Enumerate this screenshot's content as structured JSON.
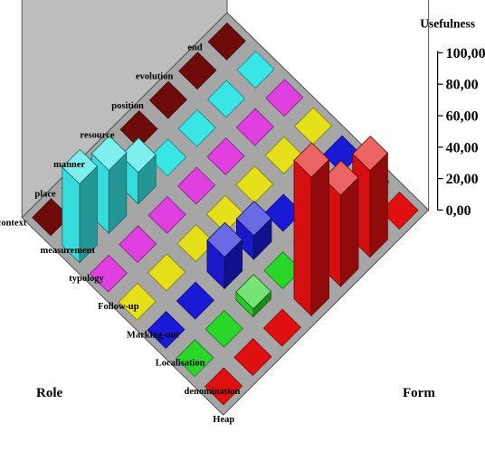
{
  "chart_data": {
    "type": "bar3d",
    "title": "",
    "zlabel": "Usefulness",
    "xlabel": "Role",
    "ylabel": "Form",
    "zlim": [
      0,
      100
    ],
    "zticks": [
      "0,00",
      "20,00",
      "40,00",
      "60,00",
      "80,00",
      "100,00"
    ],
    "grid": false,
    "legend": "none",
    "roles": [
      "end",
      "evolution",
      "position",
      "resource",
      "manner",
      "place",
      "context"
    ],
    "forms": [
      "measurement",
      "typology",
      "Follow-up",
      "Marking-out",
      "Localisation",
      "denomination",
      "Heap"
    ],
    "form_colors": [
      "#6e0a0a",
      "#39e6e6",
      "#e040e0",
      "#e6e01a",
      "#1a1ad6",
      "#2ad62a",
      "#e01010"
    ],
    "values": [
      [
        0,
        0,
        0,
        0,
        0,
        0,
        0
      ],
      [
        0,
        0,
        0,
        0,
        0,
        0,
        55
      ],
      [
        0,
        0,
        0,
        0,
        0,
        0,
        58
      ],
      [
        0,
        0,
        0,
        0,
        15,
        0,
        88
      ],
      [
        0,
        20,
        0,
        0,
        20,
        5,
        0
      ],
      [
        0,
        40,
        0,
        0,
        0,
        0,
        0
      ],
      [
        0,
        50,
        0,
        0,
        0,
        0,
        0
      ]
    ]
  }
}
